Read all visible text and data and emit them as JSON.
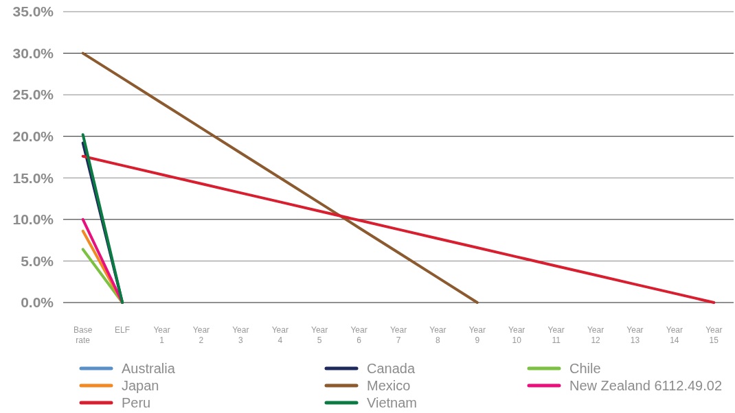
{
  "chart_data": {
    "type": "line",
    "categories": [
      "Base rate",
      "ELF",
      "Year 1",
      "Year 2",
      "Year 3",
      "Year 4",
      "Year 5",
      "Year 6",
      "Year 7",
      "Year 8",
      "Year 9",
      "Year 10",
      "Year 11",
      "Year 12",
      "Year 13",
      "Year 14",
      "Year 15"
    ],
    "ylim": [
      0,
      35
    ],
    "yticks": [
      {
        "value": 0,
        "label": "0.0%"
      },
      {
        "value": 5,
        "label": "5.0%"
      },
      {
        "value": 10,
        "label": "10.0%"
      },
      {
        "value": 15,
        "label": "15.0%"
      },
      {
        "value": 20,
        "label": "20.0%"
      },
      {
        "value": 25,
        "label": "25.0%"
      },
      {
        "value": 30,
        "label": "30.0%"
      },
      {
        "value": 35,
        "label": "35.0%"
      }
    ],
    "grid": "y",
    "legend": "bottom",
    "line_style": "solid",
    "series": [
      {
        "name": "Australia",
        "color": "#5b8fc7",
        "values": [
          null,
          null,
          null,
          null,
          null,
          null,
          null,
          null,
          null,
          null,
          null,
          null,
          null,
          null,
          null,
          null,
          null
        ]
      },
      {
        "name": "Canada",
        "color": "#1f2a5c",
        "values": [
          19.2,
          0,
          null,
          null,
          null,
          null,
          null,
          null,
          null,
          null,
          null,
          null,
          null,
          null,
          null,
          null,
          null
        ]
      },
      {
        "name": "Chile",
        "color": "#7cc142",
        "values": [
          6.4,
          0,
          null,
          null,
          null,
          null,
          null,
          null,
          null,
          null,
          null,
          null,
          null,
          null,
          null,
          null,
          null
        ]
      },
      {
        "name": "Japan",
        "color": "#f08a24",
        "values": [
          8.6,
          0,
          null,
          null,
          null,
          null,
          null,
          null,
          null,
          null,
          null,
          null,
          null,
          null,
          null,
          null,
          null
        ]
      },
      {
        "name": "Mexico",
        "color": "#8c5a2f",
        "values": [
          30,
          27,
          24,
          21,
          18,
          15,
          12,
          9,
          6,
          3,
          0,
          null,
          null,
          null,
          null,
          null,
          null
        ]
      },
      {
        "name": "New Zealand 6112.49.02",
        "color": "#e8107c",
        "values": [
          10,
          0,
          null,
          null,
          null,
          null,
          null,
          null,
          null,
          null,
          null,
          null,
          null,
          null,
          null,
          null,
          null
        ]
      },
      {
        "name": "Peru",
        "color": "#d71f30",
        "values": [
          17.6,
          16.5,
          15.4,
          14.3,
          13.2,
          12.1,
          11.0,
          9.9,
          8.8,
          7.7,
          6.6,
          5.5,
          4.4,
          3.3,
          2.2,
          1.1,
          0
        ]
      },
      {
        "name": "Vietnam",
        "color": "#0b7a43",
        "values": [
          20.2,
          0,
          null,
          null,
          null,
          null,
          null,
          null,
          null,
          null,
          null,
          null,
          null,
          null,
          null,
          null,
          null
        ]
      }
    ]
  }
}
